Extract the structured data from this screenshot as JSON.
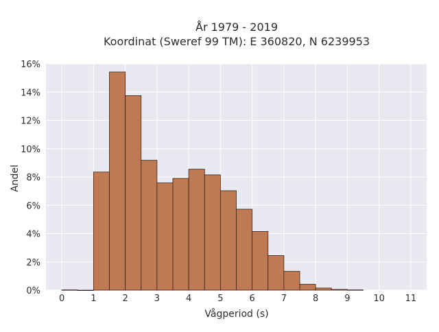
{
  "chart_data": {
    "type": "bar",
    "title_lines": [
      "År 1979 - 2019",
      "Koordinat (Sweref 99 TM): E 360820, N 6239953"
    ],
    "xlabel": "Vågperiod (s)",
    "ylabel": "Andel",
    "x_ticks": [
      "0",
      "1",
      "2",
      "3",
      "4",
      "5",
      "6",
      "7",
      "8",
      "9",
      "10",
      "11"
    ],
    "y_ticks": [
      "0%",
      "2%",
      "4%",
      "6%",
      "8%",
      "10%",
      "12%",
      "14%",
      "16%"
    ],
    "bin_width": 0.5,
    "bins": [
      {
        "x_start": 0.0,
        "value": 0.02
      },
      {
        "x_start": 0.5,
        "value": 0.0
      },
      {
        "x_start": 1.0,
        "value": 8.35
      },
      {
        "x_start": 1.5,
        "value": 15.42
      },
      {
        "x_start": 2.0,
        "value": 13.75
      },
      {
        "x_start": 2.5,
        "value": 9.18
      },
      {
        "x_start": 3.0,
        "value": 7.58
      },
      {
        "x_start": 3.5,
        "value": 7.9
      },
      {
        "x_start": 4.0,
        "value": 8.55
      },
      {
        "x_start": 4.5,
        "value": 8.15
      },
      {
        "x_start": 5.0,
        "value": 7.03
      },
      {
        "x_start": 5.5,
        "value": 5.72
      },
      {
        "x_start": 6.0,
        "value": 4.15
      },
      {
        "x_start": 6.5,
        "value": 2.45
      },
      {
        "x_start": 7.0,
        "value": 1.33
      },
      {
        "x_start": 7.5,
        "value": 0.42
      },
      {
        "x_start": 8.0,
        "value": 0.15
      },
      {
        "x_start": 8.5,
        "value": 0.05
      },
      {
        "x_start": 9.0,
        "value": 0.02
      }
    ],
    "xlim": [
      -0.5,
      11.5
    ],
    "ylim": [
      0,
      16
    ],
    "y_unit": "%",
    "grid": true,
    "bar_color": "#bf7a53",
    "bar_edge_color": "#3a2418",
    "background_color": "#e9e9f1"
  }
}
